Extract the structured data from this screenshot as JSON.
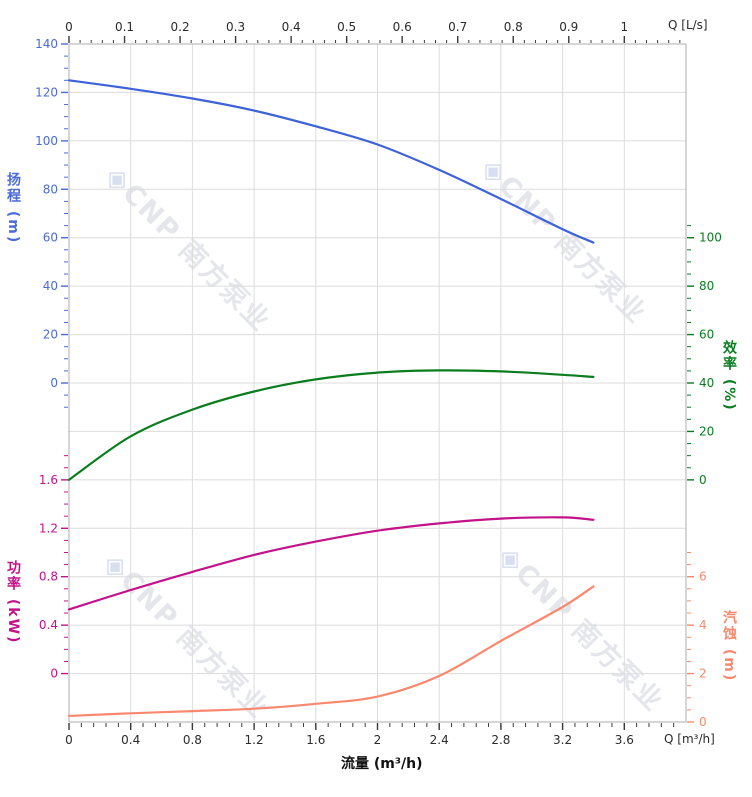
{
  "watermark": {
    "icon": "◈",
    "brand": "CNP",
    "company": "南方泵业"
  },
  "axis_titles": {
    "head": "扬程 (m)",
    "power": "功率 (kW)",
    "efficiency": "效率 (%)",
    "npsh": "汽蚀 (m)",
    "flow_bottom": "流量 (m³/h)",
    "top_unit": "Q [L/s]",
    "bottom_unit": "Q [m³/h]"
  },
  "chart_data": {
    "type": "line",
    "title": "",
    "xlabel": "流量 (m³/h)",
    "x_top_unit": "Q [L/s]",
    "x_bottom_unit": "Q [m³/h]",
    "x_max_m3h": 4.0,
    "ls_to_m3h": 3.6,
    "grid": {
      "on": true,
      "v_values_m3h": [
        0.4,
        0.8,
        1.2,
        1.6,
        2.0,
        2.4,
        2.8,
        3.2,
        3.6
      ],
      "color": "#dcdcdc",
      "border_color": "#adadad"
    },
    "x": [
      0,
      0.4,
      0.8,
      1.2,
      1.6,
      2.0,
      2.4,
      2.8,
      3.2,
      3.4
    ],
    "series": [
      {
        "id": "head",
        "name": "扬程",
        "unit": "m",
        "axis": "head",
        "color": "#3f62d8",
        "values": [
          125,
          121.5,
          117.5,
          112.5,
          106,
          98.5,
          88,
          76,
          63.5,
          58
        ]
      },
      {
        "id": "efficiency",
        "name": "效率",
        "unit": "%",
        "axis": "efficiency",
        "color": "#0b7d1f",
        "values": [
          0,
          18,
          29,
          36.5,
          41.5,
          44.3,
          45.2,
          44.8,
          43.4,
          42.5
        ]
      },
      {
        "id": "power",
        "name": "功率",
        "unit": "kW",
        "axis": "power",
        "color": "#c4138a",
        "values": [
          0.53,
          0.69,
          0.84,
          0.98,
          1.09,
          1.18,
          1.24,
          1.28,
          1.29,
          1.27
        ]
      },
      {
        "id": "npsh",
        "name": "汽蚀",
        "unit": "m",
        "axis": "npsh",
        "color": "#f9886e",
        "values": [
          0.25,
          0.36,
          0.45,
          0.55,
          0.75,
          1.05,
          1.9,
          3.35,
          4.75,
          5.6
        ]
      }
    ],
    "x_axes": [
      {
        "id": "flow-ls",
        "side": "top",
        "color": "#3a3a3a",
        "to_q": 3.6,
        "values": [
          0,
          0.1,
          0.2,
          0.3,
          0.4,
          0.5,
          0.6,
          0.7,
          0.8,
          0.9,
          1
        ],
        "labels": [
          "0",
          "0.1",
          "0.2",
          "0.3",
          "0.4",
          "0.5",
          "0.6",
          "0.7",
          "0.8",
          "0.9",
          "1"
        ],
        "minor_step": 0.02,
        "minor_from": 0,
        "minor_to": 1.1
      },
      {
        "id": "flow-m3h",
        "side": "bottom",
        "color": "#3a3a3a",
        "to_q": 1,
        "values": [
          0,
          0.4,
          0.8,
          1.2,
          1.6,
          2,
          2.4,
          2.8,
          3.2,
          3.6
        ],
        "labels": [
          "0",
          "0.4",
          "0.8",
          "1.2",
          "1.6",
          "2",
          "2.4",
          "2.8",
          "3.2",
          "3.6"
        ],
        "minor_step": 0.08,
        "minor_from": 0,
        "minor_to": 3.97
      }
    ],
    "y_axes": [
      {
        "id": "head",
        "side": "left",
        "color": "#4a6bd9",
        "ref_row": 0,
        "ref_value": 140,
        "value_per_row": 20,
        "values": [
          140,
          120,
          100,
          80,
          60,
          40,
          20,
          0
        ],
        "labels": [
          "140",
          "120",
          "100",
          "80",
          "60",
          "40",
          "20",
          "0"
        ],
        "major_step": 20,
        "minor_step": 5,
        "minor_from": -10,
        "minor_to": 140
      },
      {
        "id": "efficiency",
        "side": "right",
        "color": "#0a7d20",
        "ref_row": 4,
        "ref_value": 100,
        "value_per_row": 20,
        "values": [
          100,
          80,
          60,
          40,
          20,
          0
        ],
        "labels": [
          "100",
          "80",
          "60",
          "40",
          "20",
          "0"
        ],
        "major_step": 20,
        "minor_step": 5,
        "minor_from": 0,
        "minor_to": 105
      },
      {
        "id": "power",
        "side": "left",
        "color": "#c4138a",
        "ref_row": 9,
        "ref_value": 1.6,
        "value_per_row": 0.4,
        "values": [
          1.6,
          1.2,
          0.8,
          0.4,
          0
        ],
        "labels": [
          "1.6",
          "1.2",
          "0.8",
          "0.4",
          "0"
        ],
        "major_step": 0.4,
        "minor_step": 0.1,
        "minor_from": 0,
        "minor_to": 1.8
      },
      {
        "id": "npsh",
        "side": "right",
        "color": "#f9886e",
        "ref_row": 11,
        "ref_value": 6,
        "value_per_row": 2,
        "values": [
          6,
          4,
          2,
          0
        ],
        "labels": [
          "6",
          "4",
          "2",
          "0"
        ],
        "major_step": 2,
        "minor_step": 0.5,
        "minor_from": 0,
        "minor_to": 7
      }
    ]
  }
}
